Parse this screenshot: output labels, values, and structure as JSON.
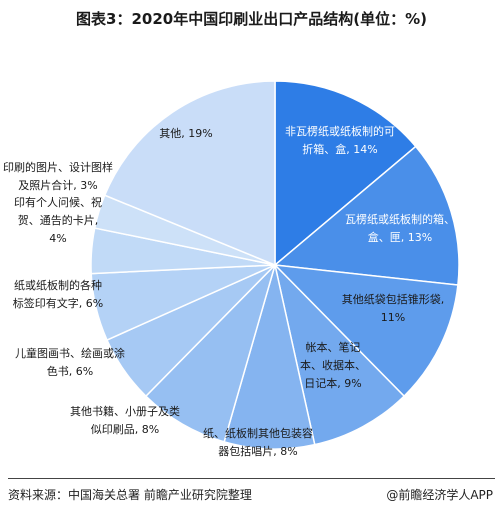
{
  "chart_data": {
    "type": "pie",
    "title": "图表3：2020年中国印刷业出口产品结构(单位：%)",
    "slices": [
      {
        "label": "非瓦楞纸或纸板制的可折箱、盒",
        "value": 14,
        "label_text": "非瓦楞纸或纸板制的可|折箱、盒, 14%",
        "color": "#2e7de6"
      },
      {
        "label": "瓦楞纸或纸板制的箱、盒、匣",
        "value": 13,
        "label_text": "瓦楞纸或纸板制的箱、|盒、匣, 13%",
        "color": "#4a8fe9"
      },
      {
        "label": "其他纸袋包括锥形袋",
        "value": 11,
        "label_text": "其他纸袋包括锥形袋,|11%",
        "color": "#5e9cec"
      },
      {
        "label": "帐本、笔记本、收据本、日记本",
        "value": 9,
        "label_text": "帐本、笔记|本、收据本、|日记本, 9%",
        "color": "#73a9ee"
      },
      {
        "label": "纸、纸板制其他包装容器包括唱片",
        "value": 8,
        "label_text": "纸、纸板制其他包装容|器包括唱片, 8%",
        "color": "#85b4f0"
      },
      {
        "label": "其他书籍、小册子及类似印刷品",
        "value": 8,
        "label_text": "其他书籍、小册子及类|似印刷品, 8%",
        "color": "#96bff2"
      },
      {
        "label": "儿童图画书、绘画或涂色书",
        "value": 6,
        "label_text": "儿童图画书、绘画或涂|色书, 6%",
        "color": "#a6c9f4"
      },
      {
        "label": "纸或纸板制的各种标签印有文字",
        "value": 6,
        "label_text": "纸或纸板制的各种|标签印有文字, 6%",
        "color": "#b4d2f6"
      },
      {
        "label": "印有个人问候、祝贺、通告的卡片",
        "value": 4,
        "label_text": "印有个人问候、祝|贺、通告的卡片,|4%",
        "color": "#c1daf7"
      },
      {
        "label": "印刷的图片、设计图样及照片合计",
        "value": 3,
        "label_text": "印刷的图片、设计图样|及照片合计, 3%",
        "color": "#cde1f8"
      },
      {
        "label": "其他",
        "value": 19,
        "label_text": "其他, 19%",
        "color": "#c9ddf8"
      }
    ]
  },
  "footer": {
    "source": "资料来源：中国海关总署 前瞻产业研究院整理",
    "credit": "@前瞻经济学人APP"
  }
}
